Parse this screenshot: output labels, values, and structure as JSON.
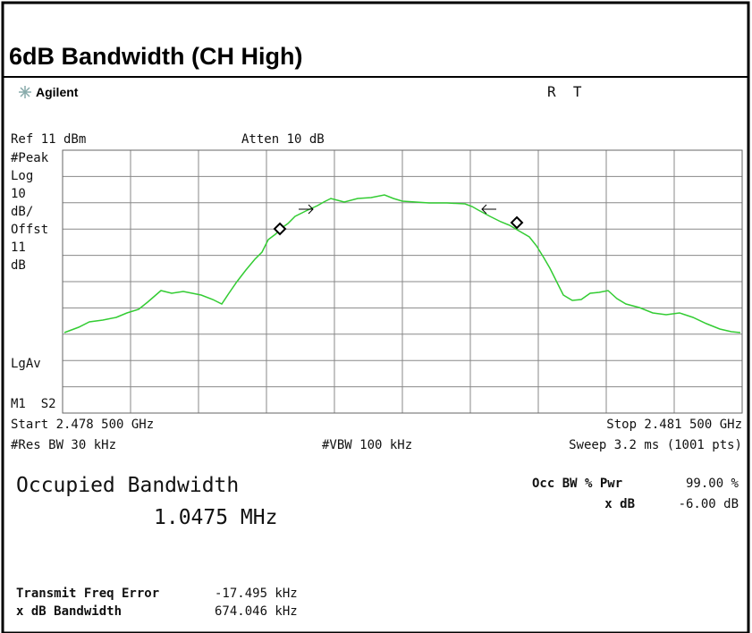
{
  "header": {
    "title": "6dB Bandwidth (CH High)"
  },
  "analyzer": {
    "brand": "Agilent",
    "status": "R  T",
    "ref": "Ref 11 dBm",
    "atten": "Atten 10 dB",
    "left_labels": [
      "#Peak",
      "Log",
      "10",
      "dB/",
      "Offst",
      "11",
      "dB"
    ],
    "lgav": "LgAv",
    "marker": "M1  S2",
    "start": "Start 2.478 500 GHz",
    "stop": "Stop 2.481 500 GHz",
    "res_bw": "#Res BW 30 kHz",
    "vbw": "#VBW 100 kHz",
    "sweep": "Sweep 3.2 ms (1001 pts)"
  },
  "results": {
    "occ_title": "Occupied Bandwidth",
    "occ_value": "1.0475 MHz",
    "occ_pwr_label": "Occ BW % Pwr",
    "occ_pwr_value": "99.00 %",
    "xdb_label": "x dB",
    "xdb_value": "-6.00 dB",
    "freq_error_label": "Transmit Freq Error",
    "freq_error_value": "-17.495 kHz",
    "xdb_bw_label": "x dB Bandwidth",
    "xdb_bw_value": "674.046 kHz"
  }
}
